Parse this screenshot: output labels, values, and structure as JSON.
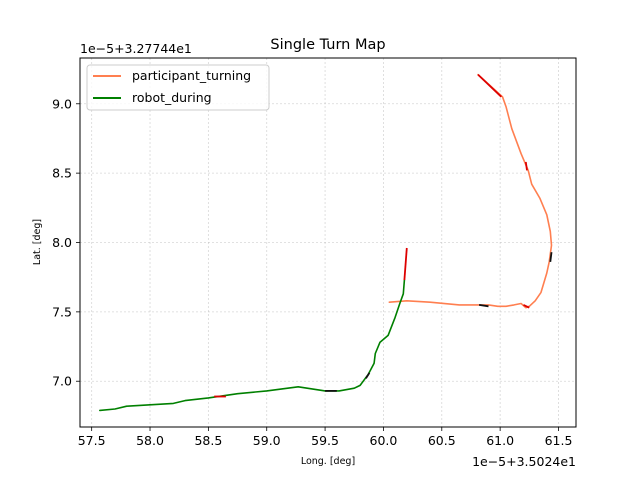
{
  "chart_data": {
    "type": "line",
    "title": "Single Turn Map",
    "xlabel": "Long. [deg]",
    "ylabel": "Lat. [deg]",
    "x_offset_label": "1e−5+3.5024e1",
    "y_offset_label": "1e−5+3.27744e1",
    "xlim": [
      57.4,
      61.65
    ],
    "ylim": [
      6.67,
      9.33
    ],
    "x_ticks": [
      57.5,
      58.0,
      58.5,
      59.0,
      59.5,
      60.0,
      60.5,
      61.0,
      61.5
    ],
    "y_ticks": [
      7.0,
      7.5,
      8.0,
      8.5,
      9.0
    ],
    "x_tick_labels": [
      "57.5",
      "58.0",
      "58.5",
      "59.0",
      "59.5",
      "60.0",
      "60.5",
      "61.0",
      "61.5"
    ],
    "y_tick_labels": [
      "7.0",
      "7.5",
      "8.0",
      "8.5",
      "9.0"
    ],
    "grid": true,
    "legend_position": "top-left",
    "series": [
      {
        "name": "participant_turning",
        "color": "#ff7f50",
        "x": [
          60.81,
          61.02,
          61.05,
          61.1,
          61.18,
          61.24,
          61.27,
          61.34,
          61.4,
          61.43,
          61.44,
          61.42,
          61.4,
          61.35,
          61.3,
          61.25,
          61.22,
          61.18,
          61.12,
          61.05,
          60.98,
          60.9,
          60.82,
          60.75,
          60.65,
          60.4,
          60.2,
          60.05
        ],
        "y": [
          9.21,
          9.05,
          8.98,
          8.82,
          8.64,
          8.52,
          8.42,
          8.32,
          8.2,
          8.08,
          7.98,
          7.86,
          7.78,
          7.64,
          7.58,
          7.54,
          7.53,
          7.56,
          7.55,
          7.54,
          7.54,
          7.55,
          7.55,
          7.55,
          7.55,
          7.57,
          7.58,
          7.57
        ]
      },
      {
        "name": "robot_during",
        "color": "#008000",
        "x": [
          57.57,
          57.7,
          57.8,
          58.0,
          58.2,
          58.3,
          58.5,
          58.75,
          59.0,
          59.27,
          59.5,
          59.62,
          59.75,
          59.8,
          59.87,
          59.92,
          59.93,
          59.97,
          60.04,
          60.1,
          60.14,
          60.17,
          60.18
        ],
        "y": [
          6.79,
          6.8,
          6.82,
          6.83,
          6.84,
          6.86,
          6.88,
          6.91,
          6.93,
          6.96,
          6.93,
          6.93,
          6.95,
          6.97,
          7.05,
          7.13,
          7.2,
          7.28,
          7.33,
          7.46,
          7.56,
          7.63,
          7.73
        ]
      }
    ],
    "highlight_segments": [
      {
        "color": "#dd0000",
        "x": [
          60.81,
          61.01
        ],
        "y": [
          9.21,
          9.05
        ]
      },
      {
        "color": "#dd0000",
        "x": [
          61.22,
          61.23
        ],
        "y": [
          8.58,
          8.52
        ]
      },
      {
        "color": "#dd0000",
        "x": [
          60.18,
          60.2
        ],
        "y": [
          7.73,
          7.96
        ]
      },
      {
        "color": "#dd0000",
        "x": [
          61.2,
          61.25
        ],
        "y": [
          7.55,
          7.53
        ]
      },
      {
        "color": "#dd0000",
        "x": [
          58.55,
          58.65
        ],
        "y": [
          6.89,
          6.89
        ]
      },
      {
        "color": "#111111",
        "x": [
          61.43,
          61.44
        ],
        "y": [
          7.86,
          7.93
        ]
      },
      {
        "color": "#111111",
        "x": [
          60.82,
          60.9
        ],
        "y": [
          7.55,
          7.54
        ]
      },
      {
        "color": "#111111",
        "x": [
          59.5,
          59.6
        ],
        "y": [
          6.93,
          6.93
        ]
      },
      {
        "color": "#111111",
        "x": [
          59.85,
          59.88
        ],
        "y": [
          7.02,
          7.06
        ]
      }
    ]
  }
}
